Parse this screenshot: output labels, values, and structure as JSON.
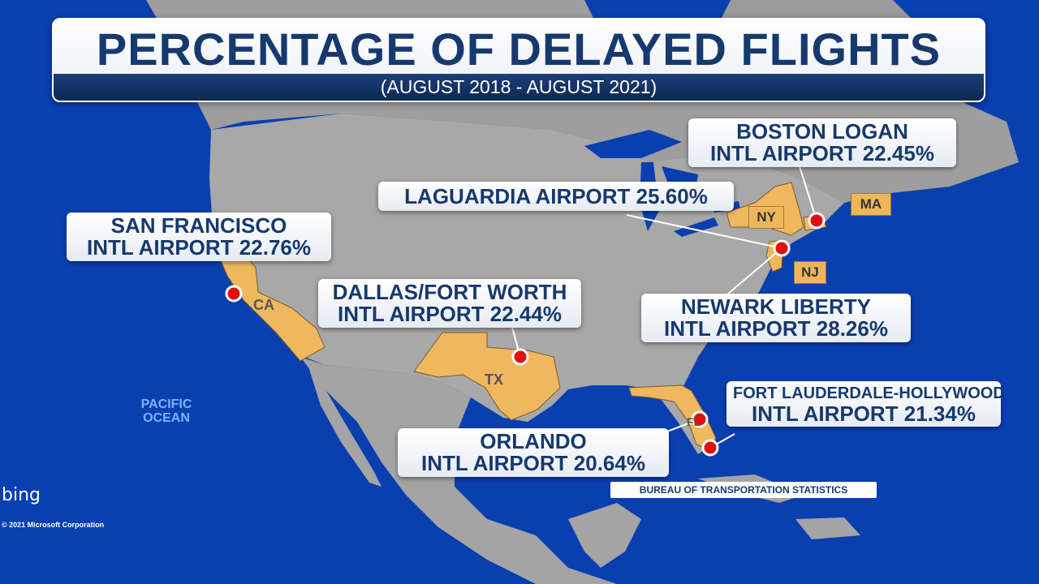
{
  "title": "PERCENTAGE OF DELAYED FLIGHTS",
  "subtitle": "(AUGUST 2018 - AUGUST 2021)",
  "airports": [
    {
      "line1": "SAN FRANCISCO",
      "line2": "INTL AIRPORT 22.76%"
    },
    {
      "line1": "DALLAS/FORT WORTH",
      "line2": "INTL AIRPORT 22.44%"
    },
    {
      "line1": "LAGUARDIA AIRPORT  25.60%"
    },
    {
      "line1": "BOSTON LOGAN",
      "line2": "INTL AIRPORT 22.45%"
    },
    {
      "line1": "NEWARK LIBERTY",
      "line2": "INTL AIRPORT 28.26%"
    },
    {
      "line1": "FORT LAUDERDALE-HOLLYWOOD",
      "line2": "INTL AIRPORT 21.34%"
    },
    {
      "line1": "ORLANDO",
      "line2": "INTL AIRPORT 20.64%"
    }
  ],
  "state_tags": {
    "ny": "NY",
    "ma": "MA",
    "nj": "NJ"
  },
  "state_labels": {
    "ca": "CA",
    "tx": "TX",
    "fl": "FL"
  },
  "ocean_label": {
    "line1": "PACIFIC",
    "line2": "OCEAN"
  },
  "source": "BUREAU OF TRANSPORTATION STATISTICS",
  "branding": {
    "logo": "bing",
    "copyright": "© 2021 Microsoft Corporation"
  },
  "colors": {
    "ocean": "#0a3fb0",
    "land": "#a6a6a6",
    "highlight_state": "#efb85e",
    "marker": "#e01010",
    "title_text": "#16396e"
  }
}
